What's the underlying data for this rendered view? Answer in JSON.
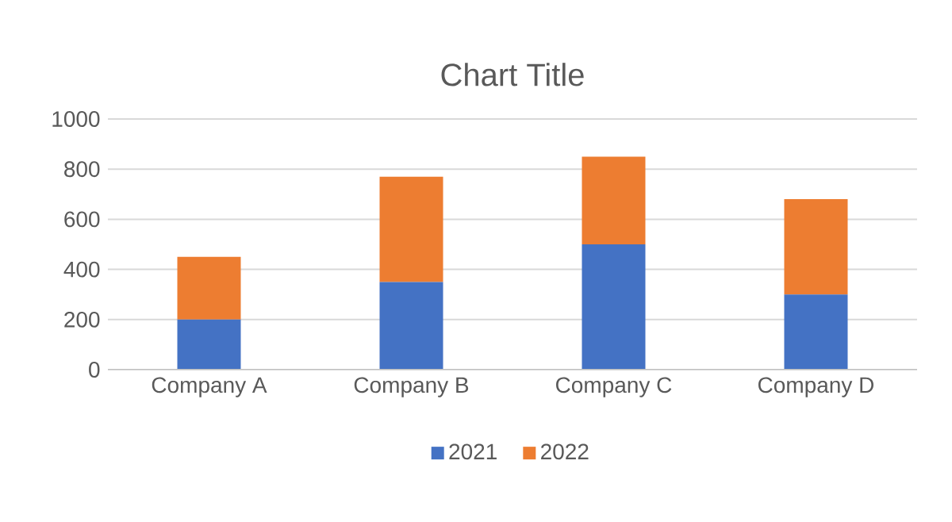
{
  "chart_data": {
    "type": "bar",
    "title": "Chart Title",
    "stacked": true,
    "categories": [
      "Company A",
      "Company B",
      "Company C",
      "Company D"
    ],
    "series": [
      {
        "name": "2021",
        "color": "#4472c4",
        "values": [
          200,
          350,
          500,
          300
        ]
      },
      {
        "name": "2022",
        "color": "#ed7d31",
        "values": [
          250,
          420,
          350,
          380
        ]
      }
    ],
    "ylim": [
      0,
      1000
    ],
    "yticks": [
      0,
      200,
      400,
      600,
      800,
      1000
    ],
    "grid": "y",
    "legend": "bottom"
  }
}
